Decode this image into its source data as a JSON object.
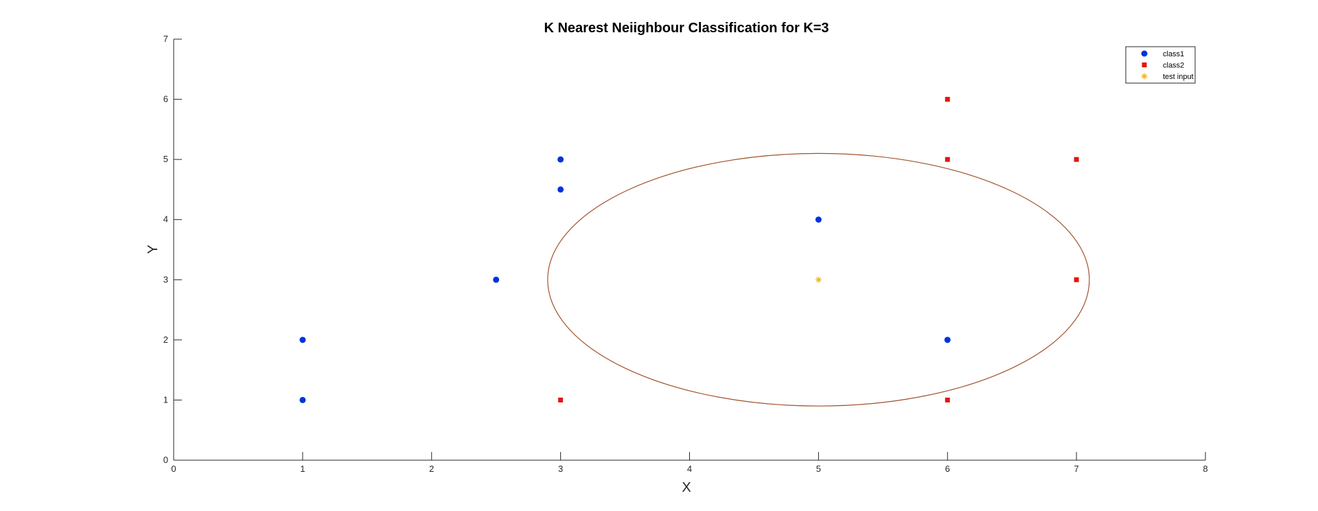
{
  "chart_data": {
    "type": "scatter",
    "title": "K Nearest Neiighbour Classification for K=3",
    "xlabel": "X",
    "ylabel": "Y",
    "xlim": [
      0,
      8
    ],
    "ylim": [
      0,
      7
    ],
    "xticks": [
      "0",
      "1",
      "2",
      "3",
      "4",
      "5",
      "6",
      "7",
      "8"
    ],
    "yticks": [
      "0",
      "1",
      "2",
      "3",
      "4",
      "5",
      "6",
      "7"
    ],
    "grid": false,
    "legend_position": "top-right",
    "series": [
      {
        "name": "class1",
        "marker": "circle",
        "color": "#0033dd",
        "points": [
          [
            1,
            1
          ],
          [
            1,
            2
          ],
          [
            2.5,
            3
          ],
          [
            3,
            4.5
          ],
          [
            3,
            5
          ],
          [
            5,
            4
          ],
          [
            6,
            2
          ]
        ]
      },
      {
        "name": "class2",
        "marker": "square",
        "color": "#e3150e",
        "points": [
          [
            3,
            1
          ],
          [
            6,
            1
          ],
          [
            7,
            3
          ],
          [
            6,
            5
          ],
          [
            7,
            5
          ],
          [
            6,
            6
          ]
        ]
      },
      {
        "name": "test input",
        "marker": "asterisk",
        "color": "#edb120",
        "points": [
          [
            5,
            3
          ]
        ]
      }
    ],
    "neighbourhood_circle": {
      "center": [
        5,
        3
      ],
      "radius": 2.1,
      "color": "#a0522d"
    }
  }
}
